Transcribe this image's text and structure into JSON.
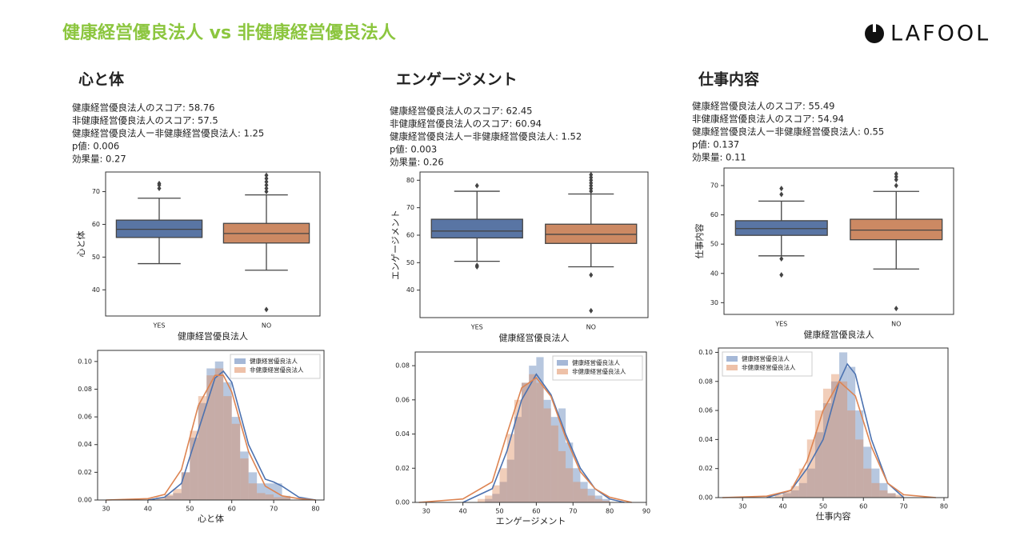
{
  "header": {
    "title": "健康経営優良法人 vs 非健康経営優良法人",
    "logo": "LAFOOL"
  },
  "panels": [
    {
      "heading": "心と体",
      "stats": [
        "健康経営優良法人のスコア: 58.76",
        "非健康経営優良法人のスコア: 57.5",
        "健康経営優良法人ー非健康経営優良法人: 1.25",
        "p値: 0.006",
        "効果量: 0.27"
      ]
    },
    {
      "heading": "エンゲージメント",
      "stats": [
        "健康経営優良法人のスコア: 62.45",
        "非健康経営優良法人のスコア: 60.94",
        "健康経営優良法人ー非健康経営優良法人: 1.52",
        "p値: 0.003",
        "効果量: 0.26"
      ]
    },
    {
      "heading": "仕事内容",
      "stats": [
        "健康経営優良法人のスコア: 55.49",
        "非健康経営優良法人のスコア: 54.94",
        "健康経営優良法人ー非健康経営優良法人: 0.55",
        "p値: 0.137",
        "効果量: 0.11"
      ]
    }
  ],
  "chart_data": [
    {
      "type": "box",
      "xlabel": "健康経営優良法人",
      "ylabel": "心と体",
      "categories": [
        "YES",
        "NO"
      ],
      "colors": [
        "#5975a4",
        "#cc8963"
      ],
      "ylim": [
        32,
        76
      ],
      "yticks": [
        40,
        50,
        60,
        70
      ],
      "boxes": [
        {
          "whislo": 48,
          "q1": 56,
          "med": 58.5,
          "q3": 61.3,
          "whishi": 68,
          "fliers": [
            71,
            72,
            72.5
          ]
        },
        {
          "whislo": 46,
          "q1": 54.3,
          "med": 57.2,
          "q3": 60.3,
          "whishi": 69,
          "fliers": [
            70,
            71,
            72,
            73,
            74,
            75,
            34
          ]
        }
      ]
    },
    {
      "type": "box",
      "xlabel": "健康経営優良法人",
      "ylabel": "エンゲージメント",
      "categories": [
        "YES",
        "NO"
      ],
      "colors": [
        "#5975a4",
        "#cc8963"
      ],
      "ylim": [
        30,
        83
      ],
      "yticks": [
        40,
        50,
        60,
        70,
        80
      ],
      "boxes": [
        {
          "whislo": 50.5,
          "q1": 59,
          "med": 61.5,
          "q3": 65.8,
          "whishi": 76,
          "fliers": [
            78,
            49,
            48.5
          ]
        },
        {
          "whislo": 48.5,
          "q1": 57,
          "med": 60.3,
          "q3": 64,
          "whishi": 75,
          "fliers": [
            76,
            77,
            78,
            79,
            80,
            81,
            82,
            45.5,
            32.5
          ]
        }
      ]
    },
    {
      "type": "box",
      "xlabel": "健康経営優良法人",
      "ylabel": "仕事内容",
      "categories": [
        "YES",
        "NO"
      ],
      "colors": [
        "#5975a4",
        "#cc8963"
      ],
      "ylim": [
        26,
        76
      ],
      "yticks": [
        30,
        40,
        50,
        60,
        70
      ],
      "boxes": [
        {
          "whislo": 46,
          "q1": 53,
          "med": 55.3,
          "q3": 58,
          "whishi": 64.7,
          "fliers": [
            67,
            69,
            45,
            39.5
          ]
        },
        {
          "whislo": 41.5,
          "q1": 51.5,
          "med": 54.8,
          "q3": 58.5,
          "whishi": 68,
          "fliers": [
            70,
            72,
            73,
            74,
            28
          ]
        }
      ]
    },
    {
      "type": "hist",
      "xlabel": "心と体",
      "legend": "upper right",
      "xlim": [
        28,
        82
      ],
      "xticks": [
        30,
        40,
        50,
        60,
        70,
        80
      ],
      "ylim": [
        0,
        0.108
      ],
      "yticks": [
        {
          "value": 0,
          "label": "0.00"
        },
        {
          "value": 0.02,
          "label": "0.02"
        },
        {
          "value": 0.04,
          "label": "0.04"
        },
        {
          "value": 0.06,
          "label": "0.06"
        },
        {
          "value": 0.08,
          "label": "0.08"
        },
        {
          "value": 0.1,
          "label": "0.10"
        }
      ],
      "series": [
        {
          "name": "健康経営優良法人",
          "color": "#4c72b0",
          "bins": [
            44,
            46,
            48,
            50,
            52,
            54,
            56,
            58,
            60,
            62,
            64,
            66,
            68,
            70,
            72,
            74
          ],
          "values": [
            0.003,
            0.005,
            0.02,
            0.045,
            0.07,
            0.095,
            0.1,
            0.085,
            0.06,
            0.035,
            0.02,
            0.012,
            0.012,
            0.012,
            0.003
          ],
          "kde": {
            "x": [
              40,
              44,
              48,
              52,
              56,
              58,
              60,
              64,
              68,
              70,
              72,
              76,
              80
            ],
            "values": [
              0,
              0.002,
              0.012,
              0.05,
              0.088,
              0.093,
              0.085,
              0.04,
              0.015,
              0.013,
              0.01,
              0.002,
              0
            ]
          }
        },
        {
          "name": "非健康経営優良法人",
          "color": "#dd8452",
          "bins": [
            42,
            44,
            46,
            48,
            50,
            52,
            54,
            56,
            58,
            60,
            62,
            64,
            66,
            68,
            70,
            72,
            74
          ],
          "values": [
            0.002,
            0.004,
            0.008,
            0.02,
            0.05,
            0.075,
            0.09,
            0.095,
            0.075,
            0.055,
            0.03,
            0.012,
            0.005,
            0.004,
            0.002,
            0.002
          ],
          "kde": {
            "x": [
              30,
              40,
              44,
              48,
              52,
              56,
              58,
              60,
              64,
              68,
              72,
              76,
              80
            ],
            "values": [
              0,
              0.001,
              0.004,
              0.022,
              0.068,
              0.09,
              0.09,
              0.078,
              0.035,
              0.01,
              0.003,
              0.001,
              0
            ]
          }
        }
      ]
    },
    {
      "type": "hist",
      "xlabel": "エンゲージメント",
      "legend": "upper right",
      "xlim": [
        27,
        90
      ],
      "xticks": [
        30,
        40,
        50,
        60,
        70,
        80,
        90
      ],
      "ylim": [
        0,
        0.088
      ],
      "yticks": [
        {
          "value": 0,
          "label": "0.00"
        },
        {
          "value": 0.02,
          "label": "0.02"
        },
        {
          "value": 0.04,
          "label": "0.04"
        },
        {
          "value": 0.06,
          "label": "0.06"
        },
        {
          "value": 0.08,
          "label": "0.08"
        }
      ],
      "series": [
        {
          "name": "健康経営優良法人",
          "color": "#4c72b0",
          "bins": [
            46,
            48,
            50,
            52,
            54,
            56,
            58,
            60,
            62,
            64,
            66,
            68,
            70,
            72,
            74,
            76,
            78,
            80
          ],
          "values": [
            0.002,
            0.005,
            0.012,
            0.025,
            0.05,
            0.07,
            0.08,
            0.085,
            0.06,
            0.05,
            0.055,
            0.035,
            0.02,
            0.012,
            0.008,
            0.004,
            0.002
          ],
          "kde": {
            "x": [
              40,
              48,
              52,
              56,
              60,
              64,
              68,
              72,
              76,
              80,
              84
            ],
            "values": [
              0,
              0.008,
              0.03,
              0.06,
              0.075,
              0.063,
              0.04,
              0.02,
              0.008,
              0.002,
              0
            ]
          }
        },
        {
          "name": "非健康経営優良法人",
          "color": "#dd8452",
          "bins": [
            44,
            46,
            48,
            50,
            52,
            54,
            56,
            58,
            60,
            62,
            64,
            66,
            68,
            70,
            72,
            74,
            76,
            78,
            80
          ],
          "values": [
            0.002,
            0.004,
            0.01,
            0.02,
            0.04,
            0.06,
            0.07,
            0.075,
            0.07,
            0.055,
            0.045,
            0.03,
            0.02,
            0.012,
            0.008,
            0.004,
            0.002,
            0.001
          ],
          "kde": {
            "x": [
              28,
              40,
              48,
              52,
              56,
              60,
              64,
              68,
              72,
              76,
              80,
              86
            ],
            "values": [
              0,
              0.002,
              0.012,
              0.04,
              0.067,
              0.073,
              0.062,
              0.038,
              0.018,
              0.008,
              0.003,
              0
            ]
          }
        }
      ]
    },
    {
      "type": "hist",
      "xlabel": "仕事内容",
      "legend": "upper left",
      "xlim": [
        24,
        81
      ],
      "xticks": [
        30,
        40,
        50,
        60,
        70,
        80
      ],
      "ylim": [
        0,
        0.103
      ],
      "yticks": [
        {
          "value": 0,
          "label": "0.00"
        },
        {
          "value": 0.02,
          "label": "0.02"
        },
        {
          "value": 0.04,
          "label": "0.04"
        },
        {
          "value": 0.06,
          "label": "0.06"
        },
        {
          "value": 0.08,
          "label": "0.08"
        },
        {
          "value": 0.1,
          "label": "0.10"
        }
      ],
      "series": [
        {
          "name": "健康経営優良法人",
          "color": "#4c72b0",
          "bins": [
            40,
            42,
            44,
            46,
            48,
            50,
            52,
            54,
            56,
            58,
            60,
            62,
            64,
            66,
            68
          ],
          "values": [
            0.003,
            0.005,
            0.01,
            0.02,
            0.045,
            0.065,
            0.08,
            0.1,
            0.09,
            0.06,
            0.035,
            0.02,
            0.01,
            0.003
          ],
          "kde": {
            "x": [
              36,
              42,
              46,
              50,
              54,
              56,
              58,
              62,
              66,
              70
            ],
            "values": [
              0,
              0.005,
              0.02,
              0.04,
              0.08,
              0.092,
              0.085,
              0.04,
              0.01,
              0
            ]
          }
        },
        {
          "name": "非健康経営優良法人",
          "color": "#dd8452",
          "bins": [
            38,
            40,
            42,
            44,
            46,
            48,
            50,
            52,
            54,
            56,
            58,
            60,
            62,
            64,
            66,
            68,
            70
          ],
          "values": [
            0.002,
            0.004,
            0.008,
            0.02,
            0.04,
            0.06,
            0.075,
            0.085,
            0.08,
            0.06,
            0.04,
            0.02,
            0.01,
            0.005,
            0.003,
            0.002
          ],
          "kde": {
            "x": [
              25,
              36,
              42,
              46,
              50,
              54,
              58,
              62,
              66,
              70,
              78
            ],
            "values": [
              0,
              0.001,
              0.005,
              0.025,
              0.06,
              0.08,
              0.07,
              0.035,
              0.01,
              0.002,
              0
            ]
          }
        }
      ]
    }
  ]
}
